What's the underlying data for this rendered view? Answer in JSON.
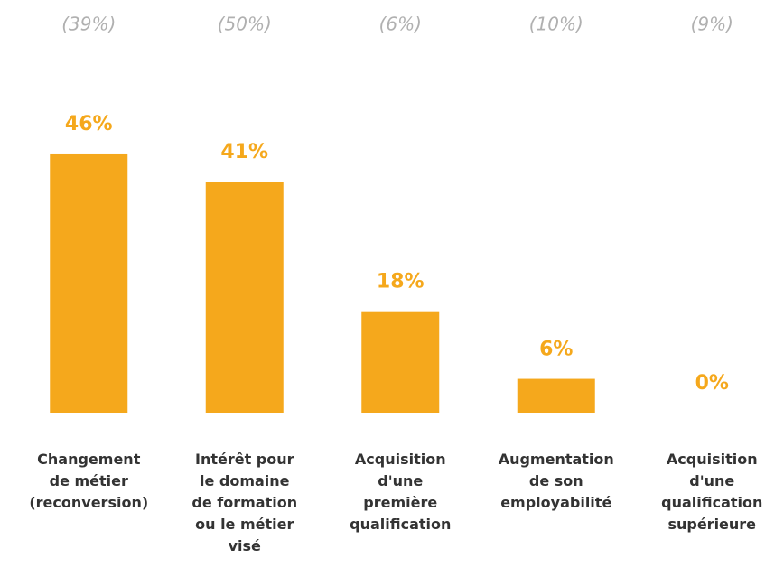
{
  "chart_data": {
    "type": "bar",
    "categories": [
      "Changement\nde métier\n(reconversion)",
      "Intérêt pour\nle domaine\nde formation\nou le métier\nvisé",
      "Acquisition\nd'une\npremière\nqualification",
      "Augmentation\nde son\nemployabilité",
      "Acquisition\nd'une\nqualification\nsupérieure"
    ],
    "values": [
      46,
      41,
      18,
      6,
      0
    ],
    "value_labels": [
      "46%",
      "41%",
      "18%",
      "6%",
      "0%"
    ],
    "comparison": {
      "values": [
        39,
        50,
        6,
        10,
        9
      ],
      "value_labels": [
        "(39%)",
        "(50%)",
        "(6%)",
        "(10%)",
        "(9%)"
      ]
    },
    "color": "#f5a81c",
    "ylim": [
      0,
      50
    ]
  }
}
